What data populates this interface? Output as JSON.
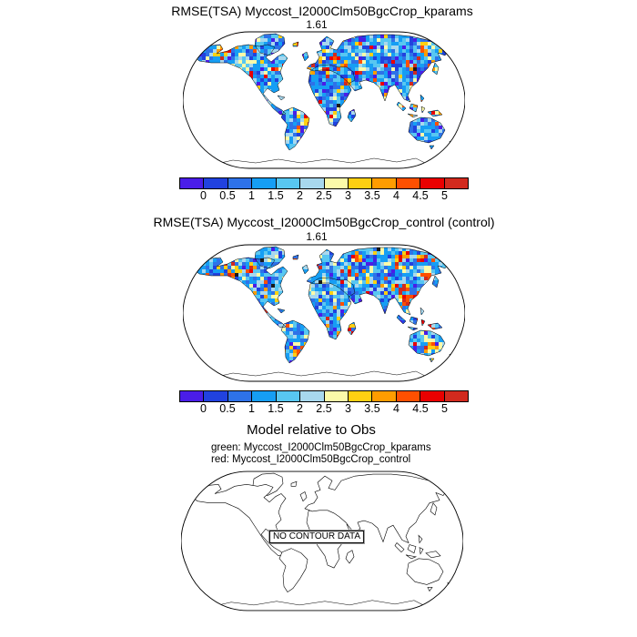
{
  "figure": {
    "background": "#ffffff",
    "text_color": "#000000"
  },
  "panels": [
    {
      "title": "RMSE(TSA) Myccost_I2000Clm50BgcCrop_kparams",
      "center_stat": "1.61"
    },
    {
      "title": "RMSE(TSA) Myccost_I2000Clm50BgcCrop_control (control)",
      "center_stat": "1.61"
    },
    {
      "title": "Model relative to Obs",
      "legend_lines": [
        "green: Myccost_I2000Clm50BgcCrop_kparams",
        "red: Myccost_I2000Clm50BgcCrop_control"
      ],
      "no_data_label": "NO CONTOUR DATA"
    }
  ],
  "colorbar": {
    "tick_labels": [
      "0",
      "0.5",
      "1",
      "1.5",
      "2",
      "2.5",
      "3",
      "3.5",
      "4",
      "4.5",
      "5"
    ],
    "colors": [
      "#4a1de8",
      "#2142df",
      "#2e72e8",
      "#169ef4",
      "#58c7f1",
      "#a8d8ee",
      "#fbfaa9",
      "#ffd012",
      "#ff9c00",
      "#ff5000",
      "#ea0000",
      "#d22a1e"
    ]
  },
  "chart_data": [
    {
      "type": "heatmap",
      "projection": "robinson",
      "title": "RMSE(TSA) Myccost_I2000Clm50BgcCrop_kparams",
      "center_value": 1.61,
      "variable": "TSA",
      "colorbar_ticks": [
        0,
        0.5,
        1,
        1.5,
        2,
        2.5,
        3,
        3.5,
        4,
        4.5,
        5
      ],
      "colorbar_colors": [
        "#4a1de8",
        "#2142df",
        "#2e72e8",
        "#169ef4",
        "#58c7f1",
        "#a8d8ee",
        "#fbfaa9",
        "#ffd012",
        "#ff9c00",
        "#ff5000",
        "#ea0000",
        "#d22a1e"
      ],
      "value_range": [
        0,
        5
      ],
      "description": "Global land raster of RMSE values, mostly 0.5-2.5 (blues) with scattered hotspots above 3 (yellow/orange/red); oceans and Antarctica blank"
    },
    {
      "type": "heatmap",
      "projection": "robinson",
      "title": "RMSE(TSA) Myccost_I2000Clm50BgcCrop_control (control)",
      "center_value": 1.61,
      "variable": "TSA",
      "colorbar_ticks": [
        0,
        0.5,
        1,
        1.5,
        2,
        2.5,
        3,
        3.5,
        4,
        4.5,
        5
      ],
      "colorbar_colors": [
        "#4a1de8",
        "#2142df",
        "#2e72e8",
        "#169ef4",
        "#58c7f1",
        "#a8d8ee",
        "#fbfaa9",
        "#ffd012",
        "#ff9c00",
        "#ff5000",
        "#ea0000",
        "#d22a1e"
      ],
      "value_range": [
        0,
        5
      ],
      "description": "Global land raster of RMSE values, mostly 0.5-2.5 (blues) with scattered hotspots above 3 (yellow/orange/red); oceans and Antarctica blank"
    },
    {
      "type": "map",
      "projection": "robinson",
      "title": "Model relative to Obs",
      "legend": [
        "green: Myccost_I2000Clm50BgcCrop_kparams",
        "red: Myccost_I2000Clm50BgcCrop_control"
      ],
      "annotation": "NO CONTOUR DATA",
      "description": "Coastline-only world map with no contour data plotted"
    }
  ]
}
